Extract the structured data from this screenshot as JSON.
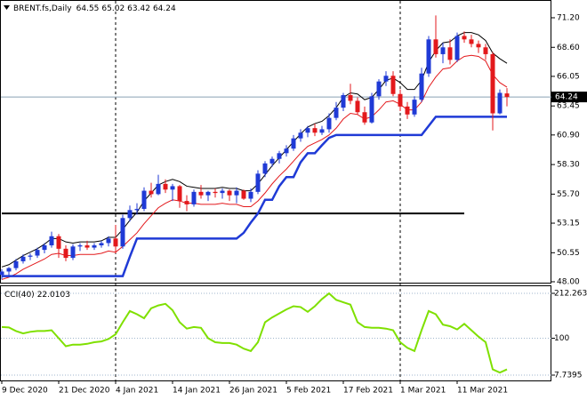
{
  "chart_data": {
    "type": "candlestick",
    "title": "BRENT.fs,Daily",
    "categories": [
      "9 Dec 2020",
      null,
      null,
      null,
      null,
      null,
      null,
      null,
      "21 Dec 2020",
      null,
      null,
      null,
      null,
      null,
      null,
      null,
      "4 Jan 2021",
      null,
      null,
      null,
      null,
      null,
      null,
      null,
      "14 Jan 2021",
      null,
      null,
      null,
      null,
      null,
      null,
      null,
      "26 Jan 2021",
      null,
      null,
      null,
      null,
      null,
      null,
      null,
      "5 Feb 2021",
      null,
      null,
      null,
      null,
      null,
      null,
      null,
      "17 Feb 2021",
      null,
      null,
      null,
      null,
      null,
      null,
      null,
      "1 Mar 2021",
      null,
      null,
      null,
      null,
      null,
      null,
      null,
      "11 Mar 2021",
      null,
      null,
      null,
      null,
      null,
      null,
      null
    ],
    "open": [
      48.6,
      48.9,
      49.2,
      49.8,
      50.2,
      50.3,
      50.8,
      51.2,
      52.0,
      50.9,
      50.1,
      51.1,
      51.2,
      51.0,
      51.2,
      51.4,
      51.8,
      51.1,
      53.6,
      54.3,
      54.4,
      56.0,
      55.7,
      56.6,
      56.1,
      56.4,
      55.1,
      54.8,
      55.9,
      55.6,
      55.9,
      55.8,
      56.0,
      55.6,
      56.0,
      55.3,
      55.9,
      57.5,
      58.4,
      58.8,
      59.3,
      59.7,
      60.6,
      61.1,
      61.5,
      61.1,
      61.4,
      62.4,
      63.3,
      64.4,
      63.9,
      62.9,
      62.0,
      64.3,
      65.6,
      66.1,
      64.5,
      63.4,
      62.7,
      64.0,
      66.3,
      69.3,
      68.0,
      68.6,
      67.5,
      69.6,
      69.3,
      68.9,
      68.6,
      68.0,
      62.8,
      64.55
    ],
    "high": [
      49.1,
      49.3,
      50.0,
      50.4,
      50.5,
      51.0,
      51.4,
      52.4,
      52.2,
      51.2,
      51.3,
      51.4,
      51.6,
      51.4,
      51.6,
      52.0,
      53.0,
      53.9,
      54.7,
      54.9,
      56.3,
      56.7,
      57.4,
      57.0,
      56.6,
      56.5,
      55.6,
      56.1,
      56.5,
      56.0,
      56.2,
      56.2,
      56.1,
      56.3,
      56.1,
      56.2,
      57.8,
      58.6,
      59.0,
      59.5,
      60.0,
      60.9,
      61.4,
      61.7,
      61.9,
      61.7,
      62.8,
      63.8,
      64.6,
      65.4,
      64.2,
      63.4,
      64.6,
      65.8,
      66.5,
      66.5,
      64.9,
      63.8,
      64.3,
      66.8,
      69.6,
      71.4,
      69.0,
      69.3,
      69.9,
      70.0,
      69.7,
      69.2,
      68.9,
      68.2,
      64.9,
      65.02
    ],
    "low": [
      48.2,
      48.5,
      49.0,
      49.6,
      49.9,
      50.1,
      50.5,
      51.0,
      50.1,
      49.8,
      49.9,
      50.7,
      50.8,
      50.8,
      51.0,
      51.1,
      50.5,
      50.9,
      53.3,
      53.9,
      54.2,
      55.4,
      55.6,
      55.8,
      55.1,
      54.5,
      54.2,
      54.6,
      55.3,
      55.1,
      55.4,
      55.3,
      55.1,
      54.9,
      55.2,
      55.0,
      55.7,
      57.2,
      58.1,
      58.4,
      59.0,
      59.5,
      60.3,
      60.7,
      60.8,
      60.9,
      61.1,
      62.2,
      63.0,
      63.6,
      62.7,
      61.8,
      61.9,
      64.0,
      65.2,
      64.3,
      63.0,
      62.3,
      62.5,
      63.8,
      66.0,
      67.7,
      67.2,
      67.1,
      67.3,
      69.0,
      68.6,
      68.1,
      67.5,
      61.3,
      62.7,
      63.42
    ],
    "close": [
      48.9,
      49.2,
      49.8,
      50.2,
      50.3,
      50.8,
      51.2,
      52.0,
      50.9,
      50.1,
      51.1,
      51.2,
      51.0,
      51.2,
      51.4,
      51.8,
      51.1,
      53.6,
      54.3,
      54.4,
      56.0,
      55.7,
      56.6,
      56.1,
      56.4,
      55.1,
      54.8,
      55.9,
      55.6,
      55.9,
      55.8,
      56.0,
      55.6,
      56.0,
      55.3,
      55.9,
      57.5,
      58.4,
      58.8,
      59.3,
      59.7,
      60.6,
      61.1,
      61.5,
      61.1,
      61.4,
      62.4,
      63.3,
      64.4,
      63.9,
      62.9,
      62.0,
      64.3,
      65.6,
      66.1,
      64.5,
      63.4,
      62.7,
      64.0,
      66.3,
      69.3,
      68.0,
      68.6,
      67.5,
      69.6,
      69.3,
      68.9,
      68.6,
      68.0,
      62.8,
      64.6,
      64.24
    ],
    "up_color": "#1f3ad6",
    "down_color": "#e3191c",
    "overlays": [
      {
        "color": "#000000",
        "width": 1,
        "values": [
          49.3,
          49.5,
          49.9,
          50.3,
          50.6,
          50.9,
          51.3,
          51.8,
          51.8,
          51.5,
          51.4,
          51.5,
          51.5,
          51.5,
          51.6,
          51.9,
          51.9,
          52.6,
          53.4,
          54.1,
          55.1,
          55.8,
          56.5,
          56.8,
          57.0,
          56.8,
          56.4,
          56.3,
          56.2,
          56.2,
          56.2,
          56.3,
          56.2,
          56.2,
          56.0,
          56.0,
          56.6,
          57.4,
          58.2,
          58.9,
          59.6,
          60.3,
          61.0,
          61.6,
          61.9,
          62.1,
          62.6,
          63.3,
          64.2,
          64.6,
          64.5,
          64.0,
          64.2,
          64.9,
          65.7,
          65.9,
          65.5,
          64.9,
          64.9,
          65.7,
          67.3,
          68.3,
          69.0,
          69.1,
          69.6,
          69.9,
          69.9,
          69.7,
          69.2,
          68.1,
          67.6,
          67.2
        ]
      },
      {
        "color": "#e3191c",
        "width": 1,
        "values": [
          48.2,
          48.4,
          48.7,
          49.1,
          49.4,
          49.7,
          50.0,
          50.4,
          50.5,
          50.3,
          50.3,
          50.4,
          50.4,
          50.4,
          50.5,
          50.7,
          50.6,
          51.1,
          51.7,
          52.3,
          53.1,
          53.8,
          54.5,
          54.9,
          55.2,
          55.1,
          54.9,
          54.9,
          54.8,
          54.8,
          54.8,
          54.9,
          54.8,
          54.8,
          54.6,
          54.6,
          55.1,
          55.8,
          56.6,
          57.3,
          57.9,
          58.6,
          59.3,
          59.9,
          60.2,
          60.5,
          60.9,
          61.5,
          62.3,
          62.8,
          62.7,
          62.3,
          62.5,
          63.1,
          63.8,
          63.9,
          63.6,
          63.1,
          63.1,
          63.8,
          65.1,
          66.0,
          66.7,
          66.8,
          67.4,
          67.8,
          67.9,
          67.8,
          67.4,
          66.2,
          65.5,
          65.1
        ]
      },
      {
        "color": "#1f3ad6",
        "width": 2.5,
        "values": [
          48.5,
          48.5,
          48.5,
          48.5,
          48.5,
          48.5,
          48.5,
          48.5,
          48.5,
          48.5,
          48.5,
          48.5,
          48.5,
          48.5,
          48.5,
          48.5,
          48.5,
          48.5,
          50.2,
          51.8,
          51.8,
          51.8,
          51.8,
          51.8,
          51.8,
          51.8,
          51.8,
          51.8,
          51.8,
          51.8,
          51.8,
          51.8,
          51.8,
          51.8,
          52.3,
          53.2,
          54.0,
          55.2,
          55.2,
          56.4,
          57.2,
          57.2,
          58.5,
          59.3,
          59.3,
          60.0,
          60.65,
          60.9,
          60.9,
          60.9,
          60.9,
          60.9,
          60.9,
          60.9,
          60.9,
          60.9,
          60.9,
          60.9,
          60.9,
          60.9,
          61.7,
          62.5,
          62.5,
          62.5,
          62.5,
          62.5,
          62.5,
          62.5,
          62.5,
          62.5,
          62.5,
          62.5
        ]
      }
    ],
    "support_line": 54.0,
    "ylim": [
      47.92,
      72.37
    ],
    "yticks": [
      {
        "value": 71.2,
        "label": "71.20"
      },
      {
        "value": 68.6,
        "label": "68.60"
      },
      {
        "value": 66.05,
        "label": "66.05"
      },
      {
        "value": 63.45,
        "label": "63.45"
      },
      {
        "value": 60.9,
        "label": "60.90"
      },
      {
        "value": 58.3,
        "label": "58.30"
      },
      {
        "value": 55.7,
        "label": "55.70"
      },
      {
        "value": 53.15,
        "label": "53.15"
      },
      {
        "value": 50.55,
        "label": "50.55"
      },
      {
        "value": 48.0,
        "label": "48.00"
      }
    ],
    "indicator": {
      "title": "CCI(40)",
      "color": "#7fe000",
      "values": [
        128,
        127,
        118,
        112,
        116,
        118,
        118,
        120,
        100,
        80,
        84,
        84,
        86,
        90,
        92,
        98,
        110,
        140,
        168,
        160,
        150,
        175,
        182,
        186,
        170,
        140,
        124,
        128,
        126,
        100,
        90,
        88,
        88,
        84,
        74,
        68,
        90,
        140,
        152,
        162,
        172,
        180,
        178,
        166,
        180,
        198,
        212,
        196,
        190,
        184,
        140,
        128,
        126,
        126,
        124,
        120,
        90,
        76,
        68,
        120,
        168,
        160,
        134,
        130,
        122,
        136,
        120,
        104,
        90,
        22,
        14,
        22.0103
      ],
      "ylim": [
        7.7395,
        212.263
      ],
      "yticks": [
        212.263,
        100,
        7.7395
      ]
    }
  }
}
